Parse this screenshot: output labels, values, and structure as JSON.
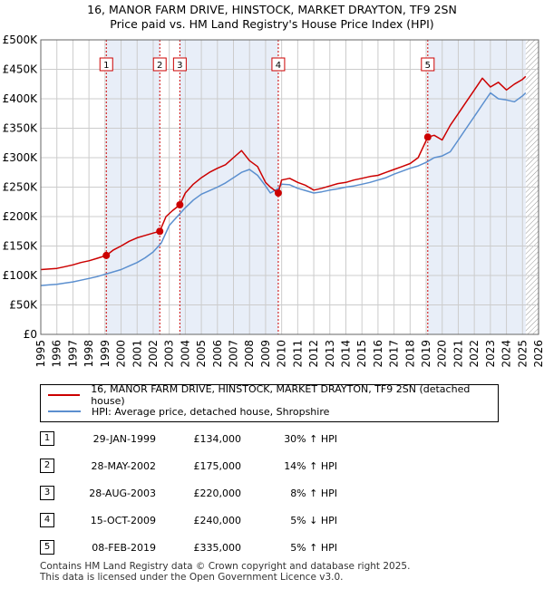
{
  "title_line1": "16, MANOR FARM DRIVE, HINSTOCK, MARKET DRAYTON, TF9 2SN",
  "title_line2": "Price paid vs. HM Land Registry's House Price Index (HPI)",
  "colors": {
    "property": "#cc0000",
    "hpi": "#5b8fcf",
    "shade": "#e8eef8",
    "grid": "#cccccc"
  },
  "legend": {
    "property_label": "16, MANOR FARM DRIVE, HINSTOCK, MARKET DRAYTON, TF9 2SN (detached house)",
    "hpi_label": "HPI: Average price, detached house, Shropshire"
  },
  "sales": [
    {
      "num": "1",
      "date": "29-JAN-1999",
      "price": "£134,000",
      "hpi_change": "30% ↑ HPI"
    },
    {
      "num": "2",
      "date": "28-MAY-2002",
      "price": "£175,000",
      "hpi_change": "14% ↑ HPI"
    },
    {
      "num": "3",
      "date": "28-AUG-2003",
      "price": "£220,000",
      "hpi_change": "8% ↑ HPI"
    },
    {
      "num": "4",
      "date": "15-OCT-2009",
      "price": "£240,000",
      "hpi_change": "5% ↓ HPI"
    },
    {
      "num": "5",
      "date": "08-FEB-2019",
      "price": "£335,000",
      "hpi_change": "5% ↑ HPI"
    }
  ],
  "footer_line1": "Contains HM Land Registry data © Crown copyright and database right 2025.",
  "footer_line2": "This data is licensed under the Open Government Licence v3.0.",
  "chart_data": {
    "type": "line",
    "title": "16, MANOR FARM DRIVE, HINSTOCK, MARKET DRAYTON, TF9 2SN — Price paid vs. HM Land Registry's House Price Index (HPI)",
    "xlabel": "",
    "ylabel": "",
    "xlim": [
      1995,
      2026
    ],
    "ylim": [
      0,
      500000
    ],
    "x_ticks": [
      1995,
      1996,
      1997,
      1998,
      1999,
      2000,
      2001,
      2002,
      2003,
      2004,
      2005,
      2006,
      2007,
      2008,
      2009,
      2010,
      2011,
      2012,
      2013,
      2014,
      2015,
      2016,
      2017,
      2018,
      2019,
      2020,
      2021,
      2022,
      2023,
      2024,
      2025,
      2026
    ],
    "y_ticks": [
      0,
      50000,
      100000,
      150000,
      200000,
      250000,
      300000,
      350000,
      400000,
      450000,
      500000
    ],
    "y_tick_labels": [
      "£0",
      "£50K",
      "£100K",
      "£150K",
      "£200K",
      "£250K",
      "£300K",
      "£350K",
      "£400K",
      "£450K",
      "£500K"
    ],
    "shaded_periods": [
      [
        1999.08,
        2002.41
      ],
      [
        2003.66,
        2009.79
      ],
      [
        2019.1,
        2025.2
      ]
    ],
    "hatched_future_from": 2025.2,
    "sale_markers": [
      {
        "label": "1",
        "x": 1999.08,
        "y": 134000
      },
      {
        "label": "2",
        "x": 2002.41,
        "y": 175000
      },
      {
        "label": "3",
        "x": 2003.66,
        "y": 220000
      },
      {
        "label": "4",
        "x": 2009.79,
        "y": 240000
      },
      {
        "label": "5",
        "x": 2019.1,
        "y": 335000
      }
    ],
    "series": [
      {
        "name": "16, MANOR FARM DRIVE, HINSTOCK, MARKET DRAYTON, TF9 2SN (detached house)",
        "x": [
          1995,
          1995.5,
          1996,
          1996.5,
          1997,
          1997.5,
          1998,
          1998.5,
          1999.08,
          1999.5,
          2000,
          2000.5,
          2001,
          2001.5,
          2002,
          2002.41,
          2002.8,
          2003.2,
          2003.66,
          2004,
          2004.5,
          2005,
          2005.5,
          2006,
          2006.5,
          2007,
          2007.5,
          2008,
          2008.5,
          2009,
          2009.3,
          2009.79,
          2010,
          2010.5,
          2011,
          2011.5,
          2012,
          2012.5,
          2013,
          2013.5,
          2014,
          2014.5,
          2015,
          2015.5,
          2016,
          2016.5,
          2017,
          2017.5,
          2018,
          2018.5,
          2019.1,
          2019.5,
          2020,
          2020.5,
          2021,
          2021.5,
          2022,
          2022.5,
          2023,
          2023.5,
          2024,
          2024.5,
          2025,
          2025.2
        ],
        "values": [
          110000,
          111000,
          112000,
          115000,
          118000,
          122000,
          125000,
          129000,
          134000,
          143000,
          150000,
          158000,
          164000,
          168000,
          172000,
          175000,
          200000,
          210000,
          220000,
          240000,
          255000,
          266000,
          275000,
          282000,
          288000,
          300000,
          312000,
          295000,
          285000,
          258000,
          250000,
          240000,
          262000,
          265000,
          258000,
          253000,
          245000,
          248000,
          252000,
          256000,
          258000,
          262000,
          265000,
          268000,
          270000,
          275000,
          280000,
          285000,
          290000,
          300000,
          335000,
          338000,
          330000,
          355000,
          375000,
          395000,
          415000,
          435000,
          420000,
          428000,
          415000,
          425000,
          433000,
          438000
        ]
      },
      {
        "name": "HPI: Average price, detached house, Shropshire",
        "x": [
          1995,
          1995.5,
          1996,
          1996.5,
          1997,
          1997.5,
          1998,
          1998.5,
          1999,
          1999.5,
          2000,
          2000.5,
          2001,
          2001.5,
          2002,
          2002.5,
          2003,
          2003.5,
          2004,
          2004.5,
          2005,
          2005.5,
          2006,
          2006.5,
          2007,
          2007.5,
          2008,
          2008.5,
          2009,
          2009.3,
          2009.8,
          2010,
          2010.5,
          2011,
          2011.5,
          2012,
          2012.5,
          2013,
          2013.5,
          2014,
          2014.5,
          2015,
          2015.5,
          2016,
          2016.5,
          2017,
          2017.5,
          2018,
          2018.5,
          2019,
          2019.5,
          2020,
          2020.5,
          2021,
          2021.5,
          2022,
          2022.5,
          2023,
          2023.5,
          2024,
          2024.5,
          2025,
          2025.2
        ],
        "values": [
          83000,
          84000,
          85000,
          87000,
          89000,
          92000,
          95000,
          98000,
          102000,
          106000,
          110000,
          116000,
          122000,
          130000,
          140000,
          155000,
          185000,
          200000,
          215000,
          228000,
          238000,
          244000,
          250000,
          257000,
          266000,
          275000,
          280000,
          270000,
          252000,
          240000,
          248000,
          255000,
          254000,
          248000,
          244000,
          240000,
          242000,
          245000,
          247000,
          250000,
          252000,
          255000,
          258000,
          262000,
          266000,
          272000,
          277000,
          282000,
          286000,
          292000,
          300000,
          303000,
          310000,
          330000,
          350000,
          370000,
          390000,
          410000,
          400000,
          398000,
          395000,
          405000,
          410000
        ]
      }
    ]
  }
}
